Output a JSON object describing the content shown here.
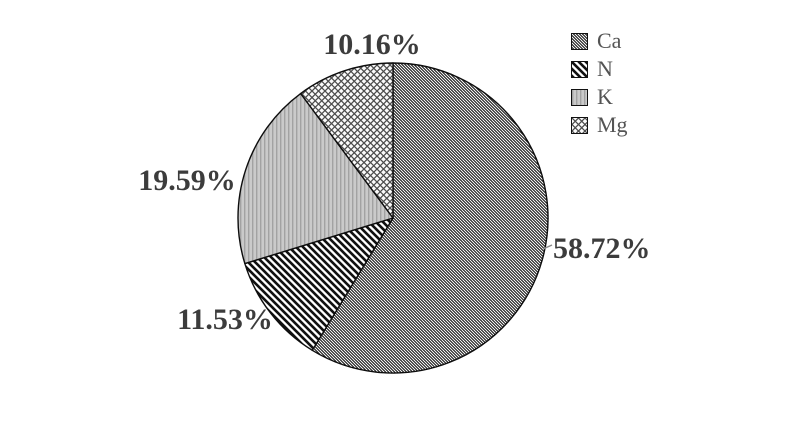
{
  "chart_data": {
    "type": "pie",
    "title": "",
    "categories": [
      "Ca",
      "N",
      "K",
      "Mg"
    ],
    "values": [
      58.72,
      11.53,
      19.59,
      10.16
    ],
    "slice_labels": [
      "58.72%",
      "11.53%",
      "19.59%",
      "10.16%"
    ],
    "start_angle": "12 o'clock",
    "direction": "clockwise",
    "legend_position": "top-right",
    "grid": false,
    "patterns": [
      "dense-diagonal-hatch-dark",
      "diagonal-stripes",
      "vertical-lines-on-gray",
      "crosshatch"
    ],
    "colors": {
      "slice_outline": "#0d0d0d",
      "percent_label_text": "#3c3c3c",
      "legend_text": "#545454",
      "k_slice_fill": "#cacaca",
      "background": "#ffffff"
    }
  }
}
